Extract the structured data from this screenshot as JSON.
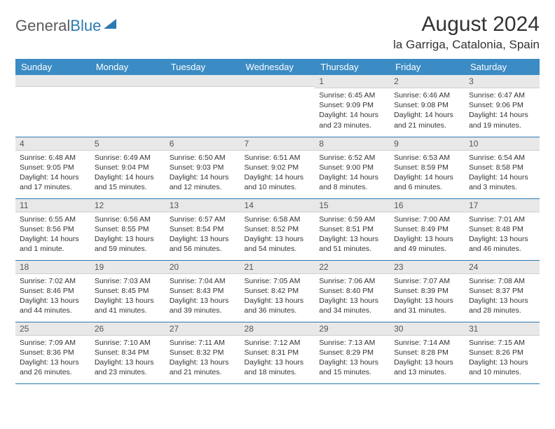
{
  "logo": {
    "word1": "General",
    "word2": "Blue"
  },
  "title": "August 2024",
  "location": "la Garriga, Catalonia, Spain",
  "colors": {
    "header_bg": "#3b8bc4",
    "header_text": "#ffffff",
    "day_num_bg": "#e8e8e8",
    "row_border": "#2a7ab0",
    "body_text": "#333333",
    "logo_gray": "#5a5a5a",
    "logo_blue": "#2a7ab0"
  },
  "typography": {
    "title_fontsize": 30,
    "location_fontsize": 17,
    "header_cell_fontsize": 13,
    "daynum_fontsize": 12,
    "body_fontsize": 10.5
  },
  "day_headers": [
    "Sunday",
    "Monday",
    "Tuesday",
    "Wednesday",
    "Thursday",
    "Friday",
    "Saturday"
  ],
  "weeks": [
    [
      {
        "n": "",
        "sr": "",
        "ss": "",
        "dl": ""
      },
      {
        "n": "",
        "sr": "",
        "ss": "",
        "dl": ""
      },
      {
        "n": "",
        "sr": "",
        "ss": "",
        "dl": ""
      },
      {
        "n": "",
        "sr": "",
        "ss": "",
        "dl": ""
      },
      {
        "n": "1",
        "sr": "Sunrise: 6:45 AM",
        "ss": "Sunset: 9:09 PM",
        "dl": "Daylight: 14 hours and 23 minutes."
      },
      {
        "n": "2",
        "sr": "Sunrise: 6:46 AM",
        "ss": "Sunset: 9:08 PM",
        "dl": "Daylight: 14 hours and 21 minutes."
      },
      {
        "n": "3",
        "sr": "Sunrise: 6:47 AM",
        "ss": "Sunset: 9:06 PM",
        "dl": "Daylight: 14 hours and 19 minutes."
      }
    ],
    [
      {
        "n": "4",
        "sr": "Sunrise: 6:48 AM",
        "ss": "Sunset: 9:05 PM",
        "dl": "Daylight: 14 hours and 17 minutes."
      },
      {
        "n": "5",
        "sr": "Sunrise: 6:49 AM",
        "ss": "Sunset: 9:04 PM",
        "dl": "Daylight: 14 hours and 15 minutes."
      },
      {
        "n": "6",
        "sr": "Sunrise: 6:50 AM",
        "ss": "Sunset: 9:03 PM",
        "dl": "Daylight: 14 hours and 12 minutes."
      },
      {
        "n": "7",
        "sr": "Sunrise: 6:51 AM",
        "ss": "Sunset: 9:02 PM",
        "dl": "Daylight: 14 hours and 10 minutes."
      },
      {
        "n": "8",
        "sr": "Sunrise: 6:52 AM",
        "ss": "Sunset: 9:00 PM",
        "dl": "Daylight: 14 hours and 8 minutes."
      },
      {
        "n": "9",
        "sr": "Sunrise: 6:53 AM",
        "ss": "Sunset: 8:59 PM",
        "dl": "Daylight: 14 hours and 6 minutes."
      },
      {
        "n": "10",
        "sr": "Sunrise: 6:54 AM",
        "ss": "Sunset: 8:58 PM",
        "dl": "Daylight: 14 hours and 3 minutes."
      }
    ],
    [
      {
        "n": "11",
        "sr": "Sunrise: 6:55 AM",
        "ss": "Sunset: 8:56 PM",
        "dl": "Daylight: 14 hours and 1 minute."
      },
      {
        "n": "12",
        "sr": "Sunrise: 6:56 AM",
        "ss": "Sunset: 8:55 PM",
        "dl": "Daylight: 13 hours and 59 minutes."
      },
      {
        "n": "13",
        "sr": "Sunrise: 6:57 AM",
        "ss": "Sunset: 8:54 PM",
        "dl": "Daylight: 13 hours and 56 minutes."
      },
      {
        "n": "14",
        "sr": "Sunrise: 6:58 AM",
        "ss": "Sunset: 8:52 PM",
        "dl": "Daylight: 13 hours and 54 minutes."
      },
      {
        "n": "15",
        "sr": "Sunrise: 6:59 AM",
        "ss": "Sunset: 8:51 PM",
        "dl": "Daylight: 13 hours and 51 minutes."
      },
      {
        "n": "16",
        "sr": "Sunrise: 7:00 AM",
        "ss": "Sunset: 8:49 PM",
        "dl": "Daylight: 13 hours and 49 minutes."
      },
      {
        "n": "17",
        "sr": "Sunrise: 7:01 AM",
        "ss": "Sunset: 8:48 PM",
        "dl": "Daylight: 13 hours and 46 minutes."
      }
    ],
    [
      {
        "n": "18",
        "sr": "Sunrise: 7:02 AM",
        "ss": "Sunset: 8:46 PM",
        "dl": "Daylight: 13 hours and 44 minutes."
      },
      {
        "n": "19",
        "sr": "Sunrise: 7:03 AM",
        "ss": "Sunset: 8:45 PM",
        "dl": "Daylight: 13 hours and 41 minutes."
      },
      {
        "n": "20",
        "sr": "Sunrise: 7:04 AM",
        "ss": "Sunset: 8:43 PM",
        "dl": "Daylight: 13 hours and 39 minutes."
      },
      {
        "n": "21",
        "sr": "Sunrise: 7:05 AM",
        "ss": "Sunset: 8:42 PM",
        "dl": "Daylight: 13 hours and 36 minutes."
      },
      {
        "n": "22",
        "sr": "Sunrise: 7:06 AM",
        "ss": "Sunset: 8:40 PM",
        "dl": "Daylight: 13 hours and 34 minutes."
      },
      {
        "n": "23",
        "sr": "Sunrise: 7:07 AM",
        "ss": "Sunset: 8:39 PM",
        "dl": "Daylight: 13 hours and 31 minutes."
      },
      {
        "n": "24",
        "sr": "Sunrise: 7:08 AM",
        "ss": "Sunset: 8:37 PM",
        "dl": "Daylight: 13 hours and 28 minutes."
      }
    ],
    [
      {
        "n": "25",
        "sr": "Sunrise: 7:09 AM",
        "ss": "Sunset: 8:36 PM",
        "dl": "Daylight: 13 hours and 26 minutes."
      },
      {
        "n": "26",
        "sr": "Sunrise: 7:10 AM",
        "ss": "Sunset: 8:34 PM",
        "dl": "Daylight: 13 hours and 23 minutes."
      },
      {
        "n": "27",
        "sr": "Sunrise: 7:11 AM",
        "ss": "Sunset: 8:32 PM",
        "dl": "Daylight: 13 hours and 21 minutes."
      },
      {
        "n": "28",
        "sr": "Sunrise: 7:12 AM",
        "ss": "Sunset: 8:31 PM",
        "dl": "Daylight: 13 hours and 18 minutes."
      },
      {
        "n": "29",
        "sr": "Sunrise: 7:13 AM",
        "ss": "Sunset: 8:29 PM",
        "dl": "Daylight: 13 hours and 15 minutes."
      },
      {
        "n": "30",
        "sr": "Sunrise: 7:14 AM",
        "ss": "Sunset: 8:28 PM",
        "dl": "Daylight: 13 hours and 13 minutes."
      },
      {
        "n": "31",
        "sr": "Sunrise: 7:15 AM",
        "ss": "Sunset: 8:26 PM",
        "dl": "Daylight: 13 hours and 10 minutes."
      }
    ]
  ]
}
